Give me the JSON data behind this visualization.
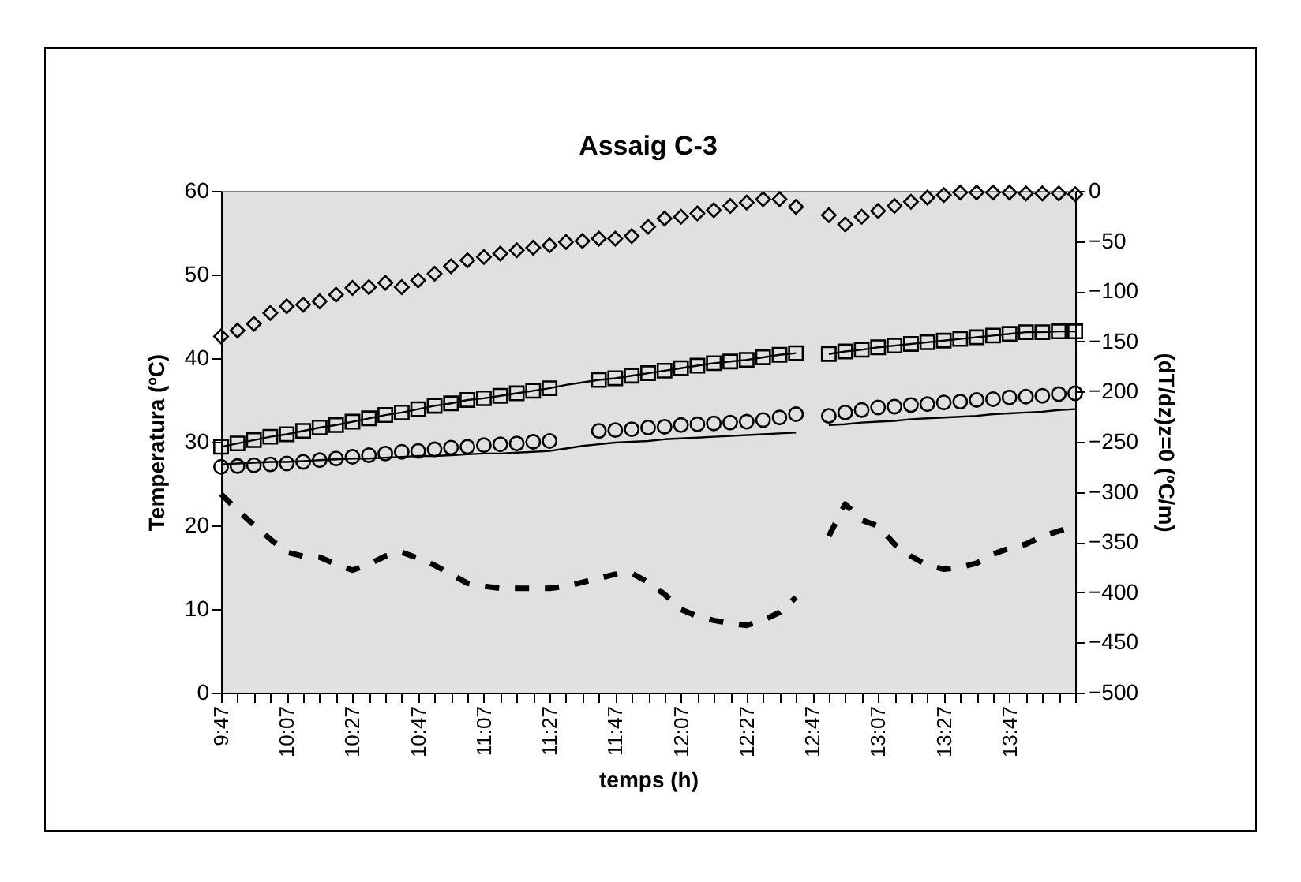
{
  "chart_data": {
    "type": "line",
    "title": "Assaig C-3",
    "xlabel": "temps (h)",
    "ylabel": "Temperatura (ºC)",
    "y2label": "(dT/dz)z=0 (ºC/m)",
    "categories": [
      "9:47",
      null,
      null,
      null,
      "10:07",
      null,
      null,
      null,
      "10:27",
      null,
      null,
      null,
      "10:47",
      null,
      null,
      null,
      "11:07",
      null,
      null,
      null,
      "11:27",
      null,
      null,
      null,
      "11:47",
      null,
      null,
      null,
      "12:07",
      null,
      null,
      null,
      "12:27",
      null,
      null,
      null,
      "12:47",
      null,
      null,
      null,
      "13:07",
      null,
      null,
      null,
      "13:27",
      null,
      null,
      null,
      "13:47",
      null,
      null,
      null,
      null
    ],
    "ylim": [
      0,
      60
    ],
    "yticks": [
      0,
      10,
      20,
      30,
      40,
      50,
      60
    ],
    "y2lim": [
      -500,
      0
    ],
    "y2ticks": [
      -500,
      -450,
      -400,
      -350,
      -300,
      -250,
      -200,
      -150,
      -100,
      -50,
      0
    ],
    "grid": false,
    "series": [
      {
        "type": "scatter",
        "marker": "diamond",
        "color": "#000000",
        "values": [
          42.6,
          43.3,
          44.1,
          45.4,
          46.2,
          46.4,
          46.8,
          47.6,
          48.4,
          48.5,
          49.0,
          48.5,
          49.3,
          50.1,
          51.0,
          51.7,
          52.1,
          52.5,
          52.9,
          53.2,
          53.5,
          53.9,
          54.0,
          54.3,
          54.3,
          54.6,
          55.7,
          56.7,
          56.9,
          57.3,
          57.7,
          58.2,
          58.6,
          59.0,
          59.0,
          58.1,
          null,
          57.1,
          56.0,
          56.9,
          57.6,
          58.2,
          58.7,
          59.2,
          59.5,
          59.8,
          59.8,
          59.8,
          59.8,
          59.7,
          59.7,
          59.7,
          59.6
        ]
      },
      {
        "type": "line",
        "line_style": "solid",
        "color": "#000000",
        "values": [
          29.4,
          29.8,
          30.2,
          30.6,
          30.9,
          31.3,
          31.7,
          32.0,
          32.4,
          32.8,
          33.2,
          33.5,
          33.9,
          34.3,
          34.6,
          35.0,
          35.2,
          35.5,
          35.8,
          36.1,
          36.4,
          36.8,
          37.1,
          37.4,
          37.6,
          37.9,
          38.2,
          38.5,
          38.8,
          39.1,
          39.4,
          39.6,
          39.8,
          40.1,
          40.4,
          40.6,
          null,
          40.5,
          40.8,
          41.0,
          41.3,
          41.5,
          41.7,
          41.9,
          42.1,
          42.3,
          42.5,
          42.7,
          42.9,
          43.1,
          43.1,
          43.2,
          43.2
        ]
      },
      {
        "type": "scatter",
        "marker": "square",
        "color": "#000000",
        "values": [
          29.4,
          29.8,
          30.2,
          30.6,
          30.9,
          31.3,
          31.7,
          32.0,
          32.4,
          32.8,
          33.2,
          33.5,
          33.9,
          34.3,
          34.6,
          35.0,
          35.2,
          35.5,
          35.8,
          36.1,
          36.4,
          null,
          null,
          37.4,
          37.6,
          37.9,
          38.2,
          38.5,
          38.8,
          39.1,
          39.4,
          39.6,
          39.8,
          40.1,
          40.4,
          40.6,
          null,
          40.5,
          40.8,
          41.0,
          41.3,
          41.5,
          41.7,
          41.9,
          42.1,
          42.3,
          42.5,
          42.7,
          42.9,
          43.1,
          43.1,
          43.2,
          43.2
        ]
      },
      {
        "type": "line",
        "line_style": "solid",
        "color": "#000000",
        "values": [
          27.3,
          27.4,
          27.5,
          27.6,
          27.6,
          27.7,
          27.8,
          27.9,
          28.0,
          28.0,
          28.1,
          28.2,
          28.3,
          28.3,
          28.4,
          28.5,
          28.6,
          28.6,
          28.7,
          28.8,
          28.9,
          29.2,
          29.5,
          29.7,
          29.9,
          30.0,
          30.1,
          30.3,
          30.4,
          30.5,
          30.6,
          30.7,
          30.8,
          30.9,
          31.0,
          31.1,
          null,
          32.0,
          32.1,
          32.3,
          32.4,
          32.5,
          32.7,
          32.8,
          32.9,
          33.0,
          33.1,
          33.3,
          33.4,
          33.5,
          33.6,
          33.8,
          33.9
        ]
      },
      {
        "type": "scatter",
        "marker": "circle",
        "color": "#000000",
        "values": [
          27.0,
          27.1,
          27.2,
          27.3,
          27.4,
          27.6,
          27.8,
          28.0,
          28.2,
          28.4,
          28.6,
          28.8,
          28.9,
          29.1,
          29.3,
          29.4,
          29.6,
          29.7,
          29.8,
          30.0,
          30.1,
          null,
          null,
          31.3,
          31.4,
          31.5,
          31.7,
          31.8,
          32.0,
          32.1,
          32.2,
          32.3,
          32.4,
          32.6,
          32.9,
          33.3,
          null,
          33.1,
          33.5,
          33.8,
          34.1,
          34.2,
          34.4,
          34.5,
          34.7,
          34.8,
          35.0,
          35.1,
          35.3,
          35.4,
          35.5,
          35.7,
          35.8
        ]
      },
      {
        "type": "line",
        "axis": "y2",
        "line_style": "dashed",
        "color": "#000000",
        "values": [
          -302,
          -318,
          -333,
          -347,
          -360,
          -364,
          -365,
          -372,
          -378,
          -372,
          -364,
          -360,
          -366,
          -373,
          -382,
          -391,
          -394,
          -396,
          -396,
          -396,
          -396,
          -394,
          -390,
          -386,
          -382,
          -381,
          -390,
          -402,
          -417,
          -424,
          -428,
          -431,
          -433,
          -428,
          -420,
          -405,
          null,
          -344,
          -312,
          -328,
          -334,
          -352,
          -364,
          -373,
          -377,
          -375,
          -371,
          -362,
          -356,
          -352,
          -344,
          -339,
          -334
        ]
      }
    ]
  }
}
